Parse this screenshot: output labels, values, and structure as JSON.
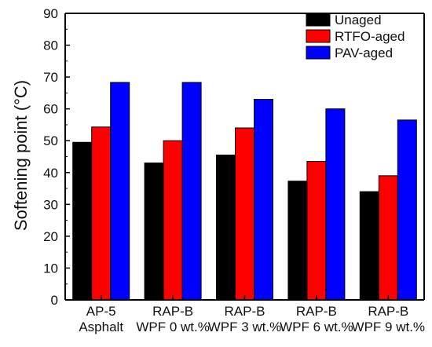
{
  "chart_data": {
    "type": "bar",
    "ylabel": "Softening point (°C)",
    "ylim": [
      0,
      90
    ],
    "y_ticks": [
      0,
      10,
      20,
      30,
      40,
      50,
      60,
      70,
      80,
      90
    ],
    "categories": [
      [
        "AP-5",
        "Asphalt"
      ],
      [
        "RAP-B",
        "WPF 0 wt.%"
      ],
      [
        "RAP-B",
        "WPF 3 wt.%"
      ],
      [
        "RAP-B",
        "WPF 6 wt.%"
      ],
      [
        "RAP-B",
        "WPF 9 wt.%"
      ]
    ],
    "series": [
      {
        "name": "Unaged",
        "color": "#000000",
        "values": [
          49.5,
          43.0,
          45.5,
          37.3,
          34.0
        ]
      },
      {
        "name": "RTFO-aged",
        "color": "#ff0000",
        "values": [
          54.3,
          50.0,
          54.0,
          43.5,
          39.0
        ]
      },
      {
        "name": "PAV-aged",
        "color": "#0000ff",
        "values": [
          68.3,
          68.3,
          63.0,
          60.0,
          56.5
        ]
      }
    ],
    "legend_position": "top-right",
    "grid": false
  }
}
